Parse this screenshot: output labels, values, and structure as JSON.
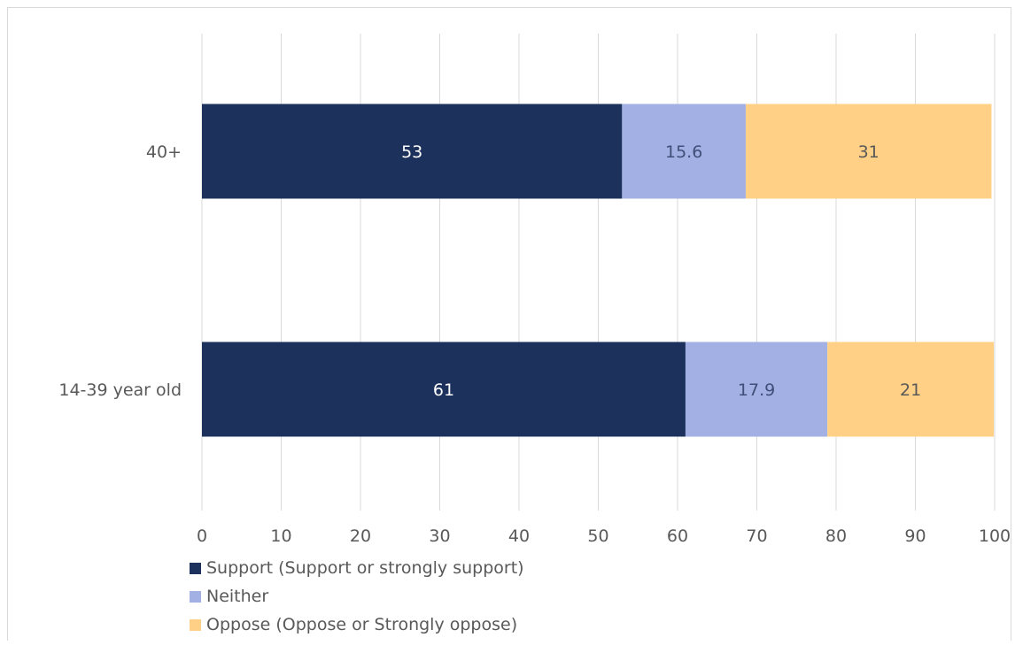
{
  "chart_data": {
    "type": "bar",
    "orientation": "horizontal",
    "stacked": true,
    "categories": [
      "40+",
      "14-39 year old"
    ],
    "series": [
      {
        "name": "Support (Support or strongly support)",
        "values": [
          53,
          61
        ],
        "labels": [
          "53",
          "61"
        ],
        "color": "#1c315c",
        "label_color": "#ffffff"
      },
      {
        "name": "Neither",
        "values": [
          15.6,
          17.9
        ],
        "labels": [
          "15.6",
          "17.9"
        ],
        "color": "#a2b0e3",
        "label_color": "#404e7a"
      },
      {
        "name": "Oppose (Oppose or Strongly oppose)",
        "values": [
          31,
          21
        ],
        "labels": [
          "31",
          "21"
        ],
        "color": "#ffd085",
        "label_color": "#595959"
      }
    ],
    "x_ticks": [
      "0",
      "10",
      "20",
      "30",
      "40",
      "50",
      "60",
      "70",
      "80",
      "90",
      "100"
    ],
    "xlim": [
      0,
      100
    ],
    "grid": true,
    "legend_position": "bottom-left"
  }
}
